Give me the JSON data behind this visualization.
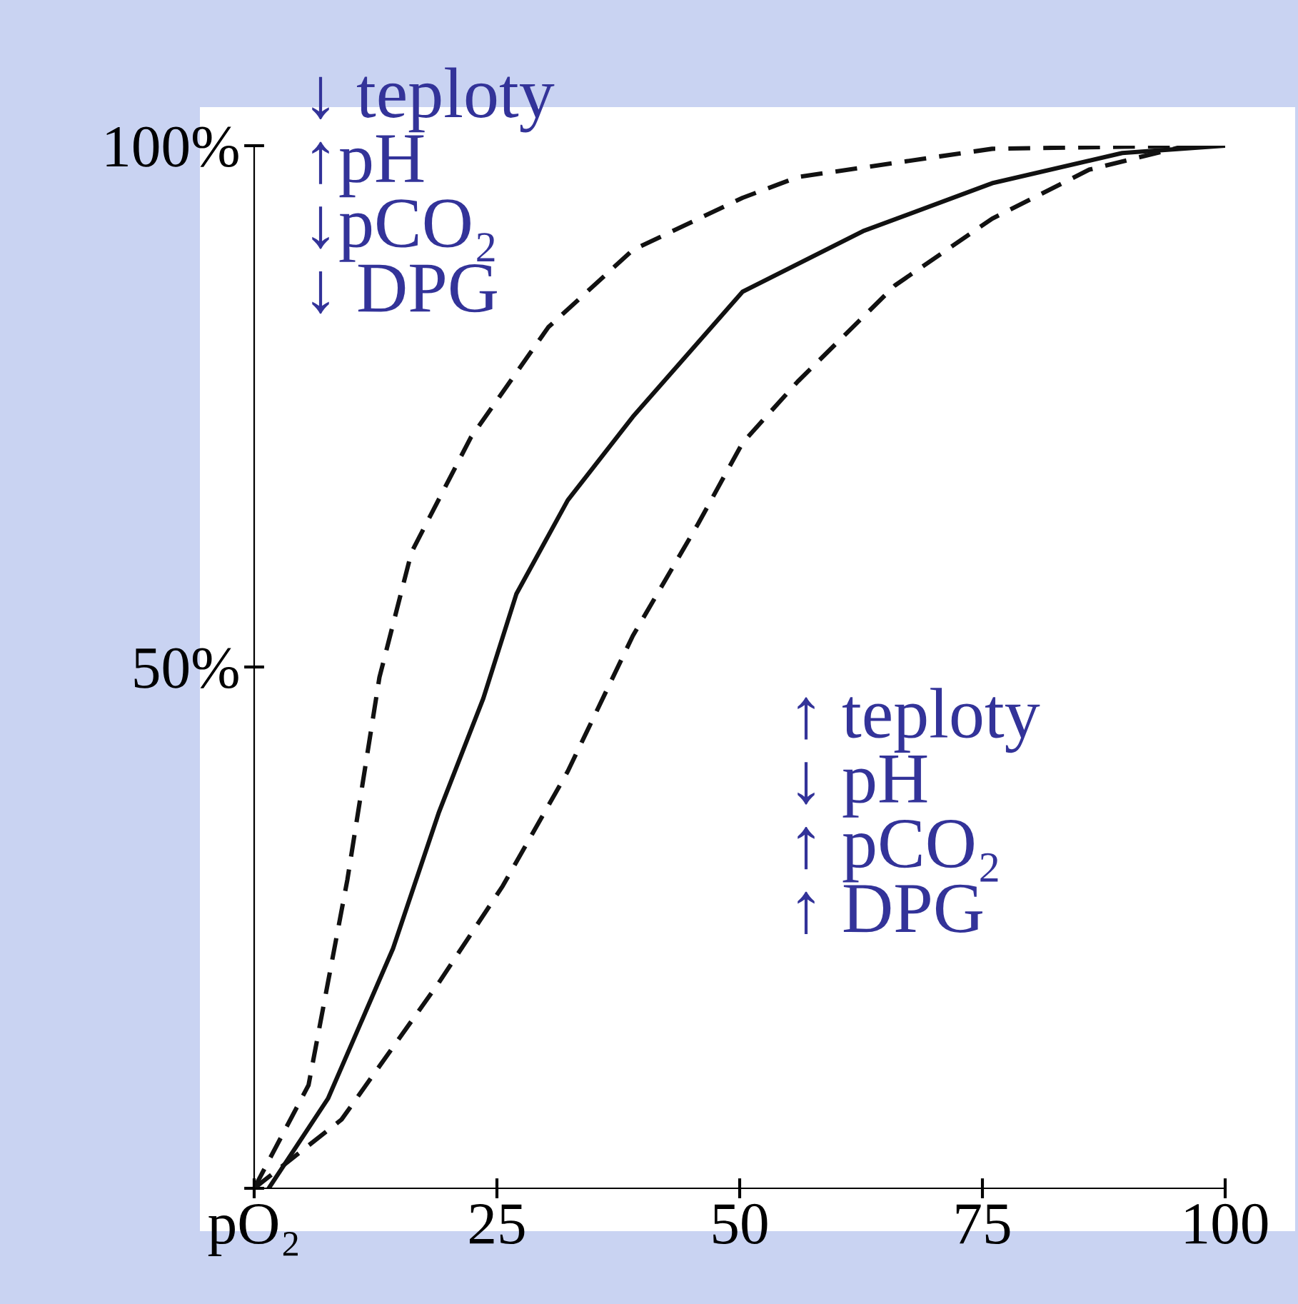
{
  "chart_data": {
    "type": "line",
    "x": [
      0,
      5.6,
      9.6,
      12.9,
      16.2,
      22.3,
      30.3,
      39,
      50.3,
      56,
      76,
      96
    ],
    "series": [
      {
        "color": "#111111",
        "line_style": "dashed",
        "values": [
          0,
          9.9,
          29.6,
          49,
          61,
          72,
          82.6,
          90,
          95,
          97,
          99.7,
          100
        ]
      },
      {
        "color": "#111111",
        "line_style": "solid",
        "x": [
          1.5,
          7.6,
          14.3,
          19,
          23.6,
          27,
          32.3,
          39,
          50.3,
          62.7,
          76,
          89.4,
          100
        ],
        "values": [
          0,
          8.6,
          23,
          36,
          47,
          57,
          66,
          74,
          86,
          91.8,
          96.4,
          99.3,
          100
        ]
      },
      {
        "color": "#111111",
        "line_style": "dashed",
        "x": [
          0,
          9,
          19,
          25.6,
          32.3,
          39,
          45.7,
          50.3,
          56,
          66,
          76,
          86,
          96,
          100
        ],
        "values": [
          0,
          6.6,
          19.7,
          29,
          40,
          53,
          63.7,
          71.5,
          77.4,
          86.6,
          93,
          97.7,
          100,
          100
        ]
      }
    ],
    "xlim": [
      0,
      100
    ],
    "ylim": [
      0,
      100
    ],
    "xticks": [
      {
        "value": 0,
        "label": "pO₂"
      },
      25,
      50,
      75,
      100
    ],
    "yticks": [
      {
        "value": 0,
        "label": null
      },
      {
        "value": 50,
        "label": "50%"
      },
      {
        "value": 100,
        "label": "100%"
      }
    ],
    "grid": false,
    "legend": false,
    "marker": "none",
    "annotations": [
      "↓ teploty\n↑pH\n↓pCO₂\n↓ DPG",
      "↑ teploty\n↓ pH\n↑ pCO₂\n↑ DPG"
    ]
  }
}
